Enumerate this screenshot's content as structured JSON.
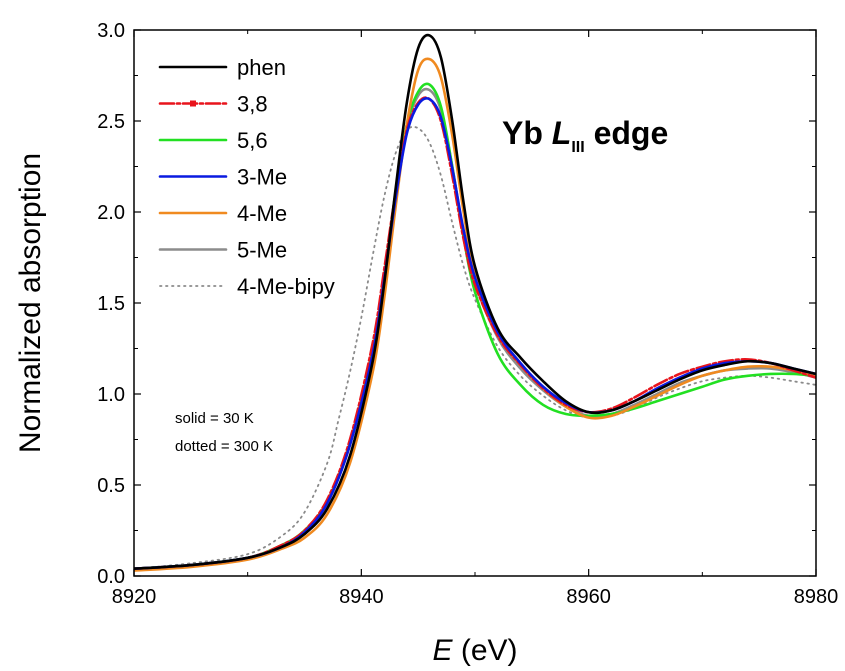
{
  "chart_data": {
    "type": "line",
    "xlabel_var": "E",
    "xlabel_unit": " (eV)",
    "ylabel": "Normalized absorption",
    "xlim": [
      8920,
      8980
    ],
    "ylim": [
      0.0,
      3.0
    ],
    "x_ticks": [
      "8920",
      "8940",
      "8960",
      "8980"
    ],
    "y_ticks": [
      "0.0",
      "0.5",
      "1.0",
      "1.5",
      "2.0",
      "2.5",
      "3.0"
    ],
    "grid": false,
    "legend_position": "top-left",
    "annotation": {
      "prefix": "Yb ",
      "italic": "L",
      "subscript": "III",
      "suffix": " edge"
    },
    "notes": [
      "solid = 30 K",
      "dotted = 300 K"
    ],
    "series": [
      {
        "name": "phen",
        "color": "#000000",
        "style": "solid",
        "x": [
          8920,
          8925,
          8930,
          8933,
          8935,
          8937,
          8939,
          8941,
          8942,
          8943,
          8944,
          8945,
          8946,
          8947,
          8948,
          8949,
          8950,
          8952,
          8954,
          8956,
          8958,
          8960,
          8962,
          8964,
          8966,
          8968,
          8970,
          8972,
          8974,
          8976,
          8978,
          8980
        ],
        "y": [
          0.04,
          0.06,
          0.1,
          0.16,
          0.23,
          0.37,
          0.66,
          1.18,
          1.6,
          2.12,
          2.6,
          2.9,
          2.97,
          2.85,
          2.5,
          2.05,
          1.7,
          1.36,
          1.2,
          1.07,
          0.96,
          0.9,
          0.91,
          0.96,
          1.02,
          1.08,
          1.13,
          1.16,
          1.18,
          1.17,
          1.14,
          1.11
        ]
      },
      {
        "name": "3,8",
        "color": "#e8141c",
        "style": "dashdot",
        "x": [
          8920,
          8925,
          8930,
          8933,
          8935,
          8937,
          8939,
          8941,
          8942,
          8943,
          8944,
          8945,
          8946,
          8947,
          8948,
          8949,
          8950,
          8952,
          8954,
          8956,
          8958,
          8960,
          8962,
          8964,
          8966,
          8968,
          8970,
          8972,
          8974,
          8976,
          8978,
          8980
        ],
        "y": [
          0.04,
          0.06,
          0.1,
          0.17,
          0.25,
          0.42,
          0.75,
          1.28,
          1.68,
          2.1,
          2.45,
          2.6,
          2.62,
          2.5,
          2.2,
          1.85,
          1.6,
          1.32,
          1.16,
          1.03,
          0.94,
          0.9,
          0.92,
          0.98,
          1.05,
          1.11,
          1.15,
          1.18,
          1.19,
          1.17,
          1.13,
          1.09
        ]
      },
      {
        "name": "5,6",
        "color": "#22e022",
        "style": "solid",
        "x": [
          8920,
          8925,
          8930,
          8933,
          8935,
          8937,
          8939,
          8941,
          8942,
          8943,
          8944,
          8945,
          8946,
          8947,
          8948,
          8949,
          8950,
          8952,
          8954,
          8956,
          8958,
          8960,
          8962,
          8964,
          8966,
          8968,
          8970,
          8972,
          8974,
          8976,
          8978,
          8980
        ],
        "y": [
          0.04,
          0.06,
          0.1,
          0.17,
          0.25,
          0.41,
          0.73,
          1.24,
          1.64,
          2.1,
          2.48,
          2.66,
          2.7,
          2.58,
          2.25,
          1.86,
          1.56,
          1.22,
          1.05,
          0.94,
          0.89,
          0.88,
          0.89,
          0.92,
          0.96,
          1.0,
          1.04,
          1.08,
          1.1,
          1.11,
          1.11,
          1.1
        ]
      },
      {
        "name": "3-Me",
        "color": "#0a1ae0",
        "style": "solid",
        "x": [
          8920,
          8925,
          8930,
          8933,
          8935,
          8937,
          8939,
          8941,
          8942,
          8943,
          8944,
          8945,
          8946,
          8947,
          8948,
          8949,
          8950,
          8952,
          8954,
          8956,
          8958,
          8960,
          8962,
          8964,
          8966,
          8968,
          8970,
          8972,
          8974,
          8976,
          8978,
          8980
        ],
        "y": [
          0.04,
          0.06,
          0.1,
          0.16,
          0.24,
          0.4,
          0.72,
          1.22,
          1.62,
          2.07,
          2.43,
          2.59,
          2.62,
          2.52,
          2.24,
          1.9,
          1.64,
          1.34,
          1.17,
          1.04,
          0.95,
          0.9,
          0.91,
          0.96,
          1.03,
          1.09,
          1.14,
          1.17,
          1.18,
          1.17,
          1.14,
          1.11
        ]
      },
      {
        "name": "4-Me",
        "color": "#f08a20",
        "style": "solid",
        "x": [
          8920,
          8925,
          8930,
          8933,
          8935,
          8937,
          8939,
          8941,
          8942,
          8943,
          8944,
          8945,
          8946,
          8947,
          8948,
          8949,
          8950,
          8952,
          8954,
          8956,
          8958,
          8960,
          8962,
          8964,
          8966,
          8968,
          8970,
          8972,
          8974,
          8976,
          8978,
          8980
        ],
        "y": [
          0.03,
          0.05,
          0.09,
          0.15,
          0.21,
          0.34,
          0.62,
          1.12,
          1.52,
          2.02,
          2.48,
          2.78,
          2.84,
          2.74,
          2.42,
          2.0,
          1.66,
          1.33,
          1.16,
          1.03,
          0.93,
          0.87,
          0.88,
          0.93,
          0.99,
          1.05,
          1.1,
          1.13,
          1.15,
          1.15,
          1.13,
          1.1
        ]
      },
      {
        "name": "5-Me",
        "color": "#8c8c8c",
        "style": "solid",
        "x": [
          8920,
          8925,
          8930,
          8933,
          8935,
          8937,
          8939,
          8941,
          8942,
          8943,
          8944,
          8945,
          8946,
          8947,
          8948,
          8949,
          8950,
          8952,
          8954,
          8956,
          8958,
          8960,
          8962,
          8964,
          8966,
          8968,
          8970,
          8972,
          8974,
          8976,
          8978,
          8980
        ],
        "y": [
          0.04,
          0.06,
          0.1,
          0.16,
          0.24,
          0.4,
          0.72,
          1.22,
          1.63,
          2.1,
          2.47,
          2.64,
          2.67,
          2.56,
          2.25,
          1.88,
          1.61,
          1.31,
          1.14,
          1.02,
          0.93,
          0.88,
          0.89,
          0.94,
          1.0,
          1.06,
          1.1,
          1.13,
          1.14,
          1.14,
          1.12,
          1.09
        ]
      },
      {
        "name": "4-Me-bipy",
        "color": "#8a8a8a",
        "style": "dotted",
        "x": [
          8920,
          8925,
          8930,
          8933,
          8935,
          8937,
          8938,
          8939,
          8940,
          8941,
          8942,
          8943,
          8944,
          8945,
          8946,
          8947,
          8948,
          8949,
          8950,
          8952,
          8954,
          8956,
          8958,
          8960,
          8962,
          8964,
          8966,
          8968,
          8970,
          8972,
          8974,
          8976,
          8978,
          8980
        ],
        "y": [
          0.04,
          0.07,
          0.12,
          0.22,
          0.35,
          0.62,
          0.86,
          1.12,
          1.42,
          1.76,
          2.08,
          2.32,
          2.45,
          2.46,
          2.38,
          2.2,
          1.94,
          1.7,
          1.52,
          1.26,
          1.1,
          0.99,
          0.91,
          0.87,
          0.88,
          0.92,
          0.98,
          1.03,
          1.07,
          1.09,
          1.1,
          1.09,
          1.07,
          1.05
        ]
      }
    ]
  }
}
